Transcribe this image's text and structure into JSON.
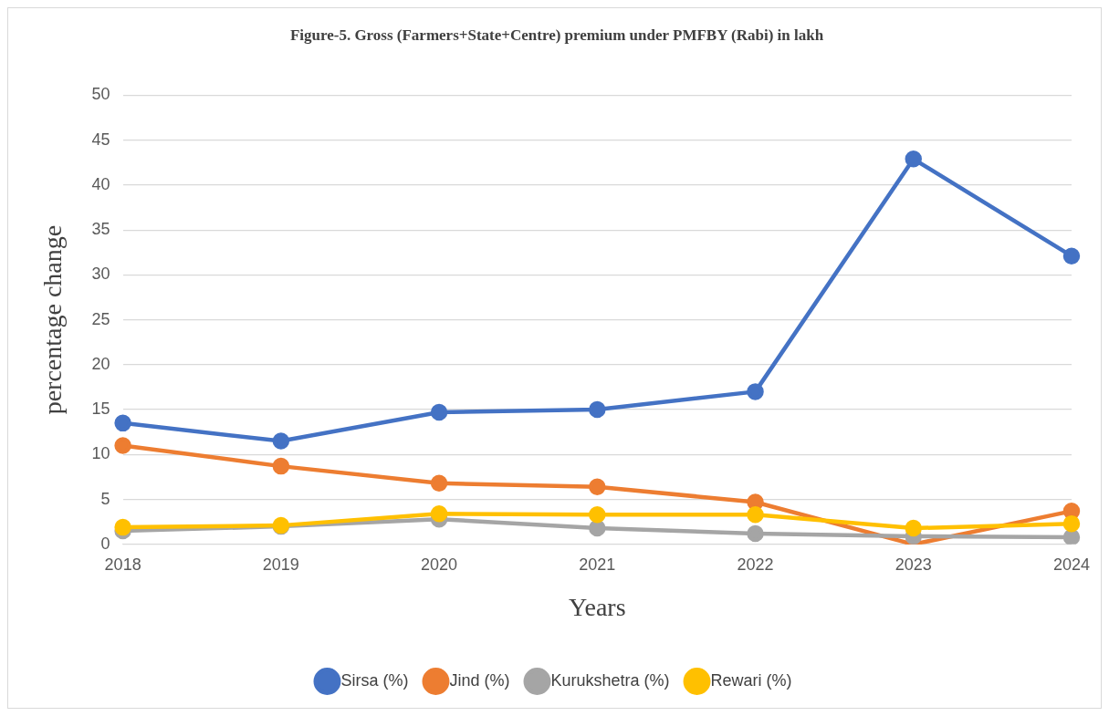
{
  "chart_data": {
    "type": "line",
    "title": "Figure-5. Gross (Farmers+State+Centre) premium under PMFBY (Rabi) in lakh",
    "xlabel": "Years",
    "ylabel": "percentage change",
    "categories": [
      "2018",
      "2019",
      "2020",
      "2021",
      "2022",
      "2023",
      "2024"
    ],
    "series": [
      {
        "name": "Sirsa (%)",
        "color": "#4472c4",
        "values": [
          13.5,
          11.5,
          14.7,
          15.0,
          17.0,
          42.9,
          32.1
        ]
      },
      {
        "name": "Jind (%)",
        "color": "#ed7d31",
        "values": [
          11.0,
          8.7,
          6.8,
          6.4,
          4.7,
          0,
          3.7
        ]
      },
      {
        "name": "Kurukshetra (%)",
        "color": "#a5a5a5",
        "values": [
          1.5,
          2.0,
          2.8,
          1.8,
          1.2,
          0.9,
          0.8
        ]
      },
      {
        "name": "Rewari (%)",
        "color": "#ffc000",
        "values": [
          1.9,
          2.1,
          3.4,
          3.3,
          3.3,
          1.8,
          2.3
        ]
      }
    ],
    "ylim": [
      0,
      50
    ],
    "yticks": [
      0,
      5,
      10,
      15,
      20,
      25,
      30,
      35,
      40,
      45,
      50
    ],
    "grid": "y",
    "legend": "bottom",
    "marker": "circle",
    "line_style": "solid"
  }
}
